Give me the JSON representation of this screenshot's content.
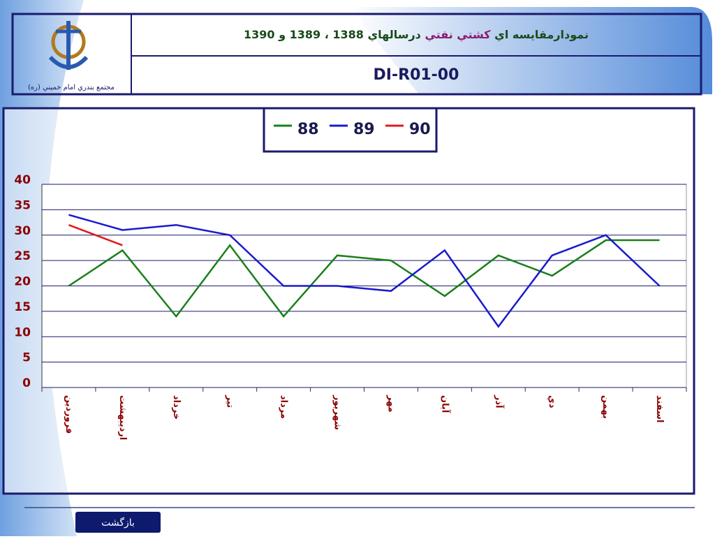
{
  "header": {
    "title_parts": [
      "نمودارمقايسه اي",
      "كشتي نفتي",
      "درسالهاي 1388 ، 1389 و 1390"
    ],
    "code": "DI-R01-00",
    "logo_caption": "مجتمع بندري امام خميني (ره)"
  },
  "button": "بازگشت",
  "chart_data": {
    "type": "line",
    "categories": [
      "فروردين",
      "ارديبهشت",
      "خرداد",
      "تير",
      "مرداد",
      "شهريور",
      "مهر",
      "آبان",
      "آذر",
      "دي",
      "بهمن",
      "اسفند"
    ],
    "series": [
      {
        "name": "88",
        "color": "#1a7f1a",
        "values": [
          20,
          27,
          14,
          28,
          14,
          26,
          25,
          18,
          26,
          22,
          29,
          29
        ]
      },
      {
        "name": "89",
        "color": "#1a1acc",
        "values": [
          34,
          31,
          32,
          30,
          20,
          20,
          19,
          27,
          12,
          26,
          30,
          20
        ]
      },
      {
        "name": "90",
        "color": "#e01a1a",
        "values": [
          32,
          28,
          null,
          null,
          null,
          null,
          null,
          null,
          null,
          null,
          null,
          null
        ]
      }
    ],
    "ylim": [
      0,
      40
    ],
    "yticks": [
      0,
      5,
      10,
      15,
      20,
      25,
      30,
      35,
      40
    ],
    "grid": true,
    "legend": "top"
  }
}
